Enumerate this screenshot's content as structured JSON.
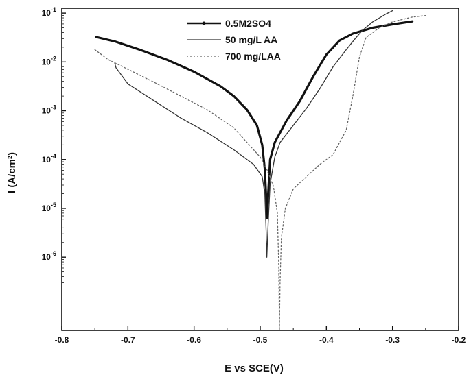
{
  "chart_data": {
    "type": "line",
    "xlabel": "E vs SCE(V)",
    "ylabel": "I (A/cm²)",
    "xlim": [
      -0.8,
      -0.2
    ],
    "ylim_log10": [
      -7.5,
      -0.9
    ],
    "y_scale": "log",
    "grid": false,
    "legend_position": "top-center",
    "x_ticks": [
      {
        "value": -0.8,
        "label": "-0.8"
      },
      {
        "value": -0.7,
        "label": "-0.7"
      },
      {
        "value": -0.6,
        "label": "-0.6"
      },
      {
        "value": -0.5,
        "label": "-0.5"
      },
      {
        "value": -0.4,
        "label": "-0.4"
      },
      {
        "value": -0.3,
        "label": "-0.3"
      },
      {
        "value": -0.2,
        "label": "-0.2"
      }
    ],
    "y_ticks": [
      {
        "exp": -1,
        "base": "10",
        "sup": "-1"
      },
      {
        "exp": -2,
        "base": "10",
        "sup": "-2"
      },
      {
        "exp": -3,
        "base": "10",
        "sup": "-3"
      },
      {
        "exp": -4,
        "base": "10",
        "sup": "-4"
      },
      {
        "exp": -5,
        "base": "10",
        "sup": "-5"
      },
      {
        "exp": -6,
        "base": "10",
        "sup": "-6"
      }
    ],
    "series": [
      {
        "name": "0.5M2SO4",
        "color": "#111111",
        "style": "thick-solid",
        "points": [
          [
            -0.748,
            -1.49
          ],
          [
            -0.72,
            -1.58
          ],
          [
            -0.68,
            -1.76
          ],
          [
            -0.64,
            -1.96
          ],
          [
            -0.6,
            -2.2
          ],
          [
            -0.56,
            -2.5
          ],
          [
            -0.54,
            -2.7
          ],
          [
            -0.52,
            -2.98
          ],
          [
            -0.505,
            -3.3
          ],
          [
            -0.497,
            -3.7
          ],
          [
            -0.493,
            -4.2
          ],
          [
            -0.491,
            -4.8
          ],
          [
            -0.49,
            -5.2
          ],
          [
            -0.488,
            -4.7
          ],
          [
            -0.485,
            -4.0
          ],
          [
            -0.478,
            -3.65
          ],
          [
            -0.46,
            -3.2
          ],
          [
            -0.44,
            -2.8
          ],
          [
            -0.42,
            -2.3
          ],
          [
            -0.4,
            -1.85
          ],
          [
            -0.38,
            -1.56
          ],
          [
            -0.36,
            -1.42
          ],
          [
            -0.33,
            -1.3
          ],
          [
            -0.3,
            -1.23
          ],
          [
            -0.27,
            -1.17
          ]
        ]
      },
      {
        "name": "50 mg/L AA",
        "color": "#333333",
        "style": "thin-solid",
        "points": [
          [
            -0.72,
            -2.02
          ],
          [
            -0.718,
            -2.12
          ],
          [
            -0.7,
            -2.45
          ],
          [
            -0.66,
            -2.8
          ],
          [
            -0.62,
            -3.15
          ],
          [
            -0.58,
            -3.45
          ],
          [
            -0.54,
            -3.8
          ],
          [
            -0.51,
            -4.1
          ],
          [
            -0.497,
            -4.35
          ],
          [
            -0.493,
            -4.7
          ],
          [
            -0.491,
            -5.5
          ],
          [
            -0.49,
            -6.0
          ],
          [
            -0.488,
            -5.3
          ],
          [
            -0.485,
            -4.5
          ],
          [
            -0.478,
            -3.95
          ],
          [
            -0.47,
            -3.65
          ],
          [
            -0.45,
            -3.3
          ],
          [
            -0.43,
            -2.95
          ],
          [
            -0.41,
            -2.55
          ],
          [
            -0.39,
            -2.1
          ],
          [
            -0.37,
            -1.75
          ],
          [
            -0.355,
            -1.5
          ],
          [
            -0.345,
            -1.35
          ],
          [
            -0.33,
            -1.18
          ],
          [
            -0.31,
            -1.02
          ],
          [
            -0.3,
            -0.95
          ]
        ]
      },
      {
        "name": "700 mg/LAA",
        "color": "#666666",
        "style": "dashed",
        "points": [
          [
            -0.75,
            -1.75
          ],
          [
            -0.73,
            -1.95
          ],
          [
            -0.7,
            -2.15
          ],
          [
            -0.66,
            -2.42
          ],
          [
            -0.62,
            -2.7
          ],
          [
            -0.58,
            -2.98
          ],
          [
            -0.54,
            -3.35
          ],
          [
            -0.52,
            -3.65
          ],
          [
            -0.5,
            -3.95
          ],
          [
            -0.49,
            -4.2
          ],
          [
            -0.48,
            -4.55
          ],
          [
            -0.474,
            -5.1
          ],
          [
            -0.472,
            -6.2
          ],
          [
            -0.471,
            -7.5
          ],
          [
            -0.47,
            -6.5
          ],
          [
            -0.468,
            -5.6
          ],
          [
            -0.462,
            -5.0
          ],
          [
            -0.45,
            -4.6
          ],
          [
            -0.43,
            -4.35
          ],
          [
            -0.41,
            -4.1
          ],
          [
            -0.39,
            -3.9
          ],
          [
            -0.37,
            -3.4
          ],
          [
            -0.36,
            -2.7
          ],
          [
            -0.35,
            -1.9
          ],
          [
            -0.34,
            -1.5
          ],
          [
            -0.32,
            -1.3
          ],
          [
            -0.3,
            -1.18
          ],
          [
            -0.27,
            -1.08
          ],
          [
            -0.25,
            -1.05
          ]
        ]
      }
    ]
  }
}
